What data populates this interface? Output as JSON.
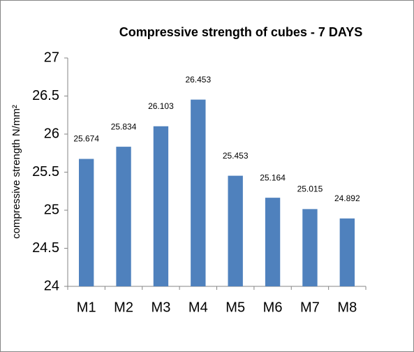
{
  "chart_data": {
    "type": "bar",
    "title": "Compressive strength of cubes - 7 DAYS",
    "y_label": "compressive strength N/mm²",
    "categories": [
      "M1",
      "M2",
      "M3",
      "M4",
      "M5",
      "M6",
      "M7",
      "M8"
    ],
    "values": [
      25.674,
      25.834,
      26.103,
      26.453,
      25.453,
      25.164,
      25.015,
      24.892
    ],
    "color": "#4f81bd",
    "ylim": [
      24,
      27
    ],
    "yticks": [
      24,
      24.5,
      25,
      25.5,
      26,
      26.5,
      27
    ],
    "grid": false
  }
}
